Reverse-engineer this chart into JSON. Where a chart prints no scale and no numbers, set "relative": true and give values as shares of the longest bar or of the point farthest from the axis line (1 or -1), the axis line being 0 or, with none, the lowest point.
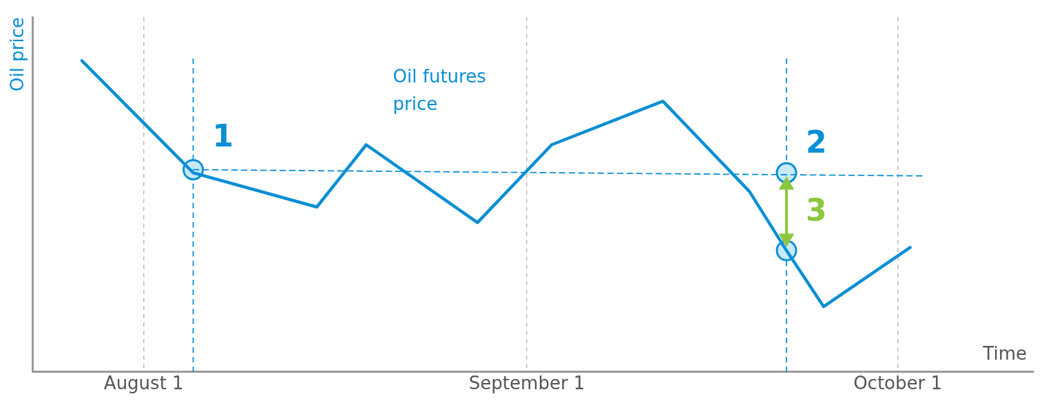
{
  "chart_data": {
    "type": "line",
    "relative": true,
    "xlabel": "Time",
    "ylabel": "Oil price",
    "xlim": [
      "--07-23",
      "--10-12"
    ],
    "xticks": [
      {
        "value": "--08-01",
        "label": "August 1"
      },
      {
        "value": "--09-01",
        "label": "September 1"
      },
      {
        "value": "--10-01",
        "label": "October 1"
      }
    ],
    "grid": "x",
    "series": [
      {
        "color": "#0a8fd4",
        "marker": "none",
        "line_style": "solid",
        "x": [
          "--07-27",
          "--08-05",
          "--08-15",
          "--08-19",
          "--08-28",
          "--09-03",
          "--09-12",
          "--09-19",
          "--09-22",
          "--09-25",
          "--10-02"
        ],
        "values": [
          1,
          0.64,
          0.53,
          0.73,
          0.48,
          0.73,
          0.87,
          0.58,
          0.39,
          0.21,
          0.4
        ]
      },
      {
        "type": "line",
        "color": "#0a8fd4",
        "marker": "none",
        "line_style": "dashed",
        "x": [
          "--08-05",
          "--10-03"
        ],
        "values": [
          0.65,
          0.63
        ]
      },
      {
        "type": "scatter",
        "color": "#c8e9f8",
        "marker": "circle",
        "x": [
          "--08-05",
          "--09-22",
          "--09-22"
        ],
        "values": [
          0.65,
          0.64,
          0.39
        ]
      },
      {
        "type": "line",
        "color": "#8cc63f",
        "marker": "triangle",
        "line_style": "solid",
        "x": [
          "--09-22",
          "--09-22"
        ],
        "values": [
          0.6,
          0.43
        ]
      }
    ],
    "ref_lines": [
      {
        "axis": "x",
        "value": "--08-05",
        "color": "#0a8fd4",
        "line_style": "dashed"
      },
      {
        "axis": "x",
        "value": "--09-22",
        "color": "#0a8fd4",
        "line_style": "dashed"
      }
    ],
    "annotations": [
      "Oil futures price",
      {
        "text": "1",
        "x": "--08-05",
        "y": 0.75
      },
      {
        "text": "2",
        "x": "--09-22",
        "y": 0.73
      },
      {
        "text": "3",
        "x": "--09-22",
        "y": 0.51
      }
    ]
  }
}
